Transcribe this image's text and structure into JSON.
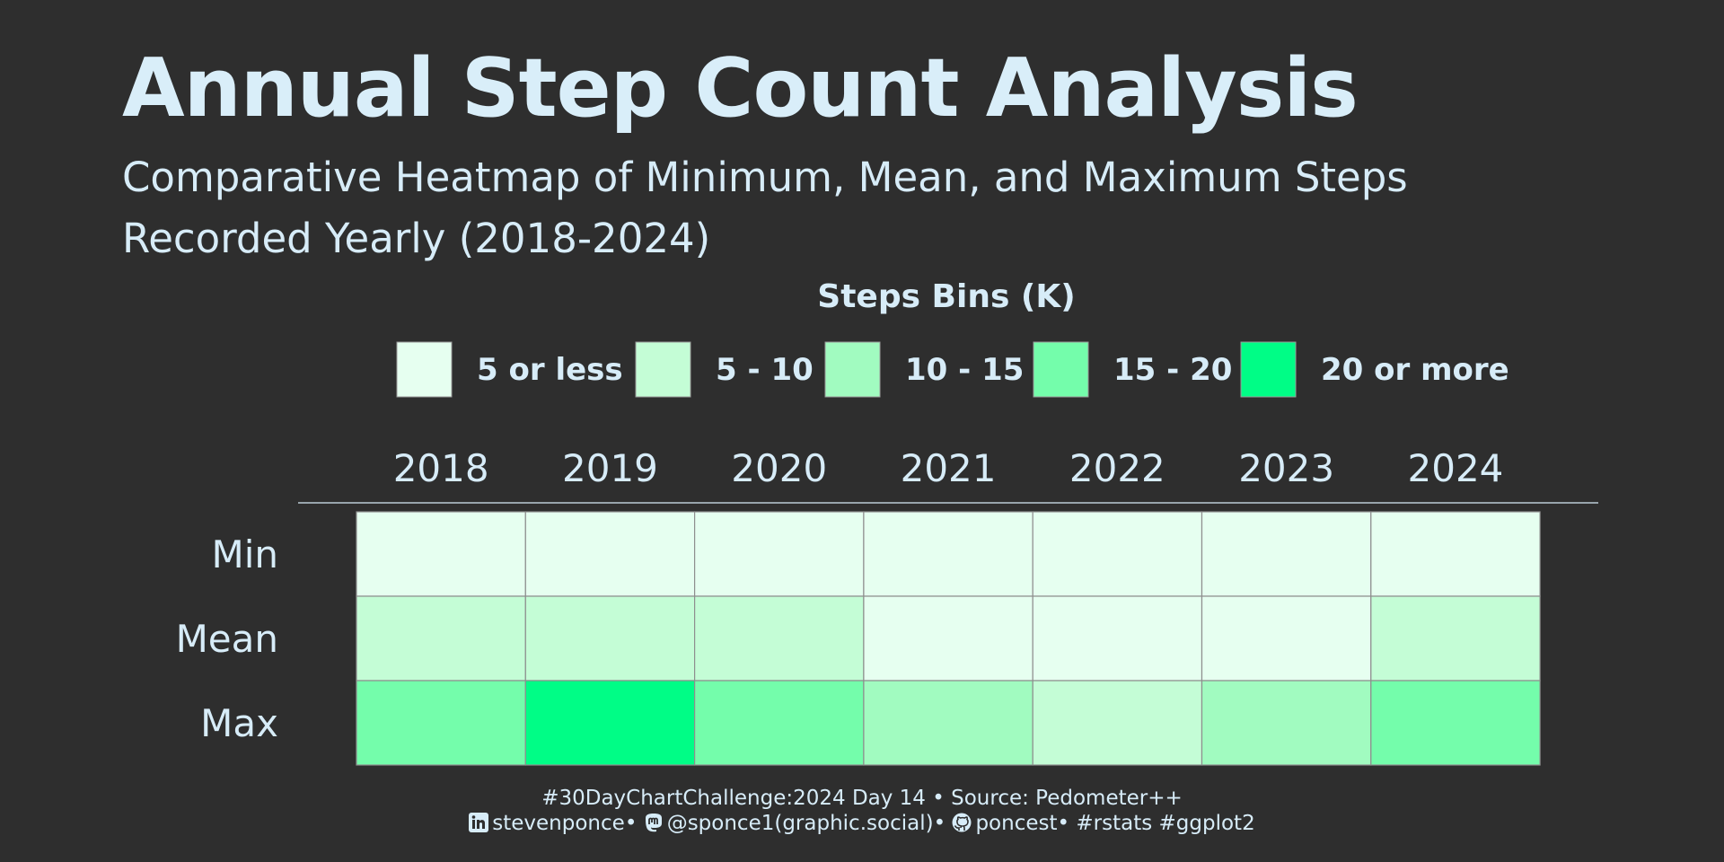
{
  "title": "Annual Step Count Analysis",
  "subtitle": "Comparative Heatmap of Minimum, Mean, and Maximum Steps Recorded Yearly (2018-2024)",
  "chart_data": {
    "type": "heatmap",
    "x": [
      "2018",
      "2019",
      "2020",
      "2021",
      "2022",
      "2023",
      "2024"
    ],
    "y": [
      "Min",
      "Mean",
      "Max"
    ],
    "legend_title": "Steps Bins (K)",
    "legend_position": "top",
    "bins": [
      {
        "label": "5 or less",
        "color": "#e6fff0"
      },
      {
        "label": "5 - 10",
        "color": "#c4fdd6"
      },
      {
        "label": "10 - 15",
        "color": "#a1fbc0"
      },
      {
        "label": "15 - 20",
        "color": "#74fdab"
      },
      {
        "label": "20 or more",
        "color": "#00fd86"
      }
    ],
    "cells": [
      [
        "5 or less",
        "5 or less",
        "5 or less",
        "5 or less",
        "5 or less",
        "5 or less",
        "5 or less"
      ],
      [
        "5 - 10",
        "5 - 10",
        "5 - 10",
        "5 or less",
        "5 or less",
        "5 or less",
        "5 - 10"
      ],
      [
        "15 - 20",
        "20 or more",
        "15 - 20",
        "10 - 15",
        "5 - 10",
        "10 - 15",
        "15 - 20"
      ]
    ]
  },
  "footer": {
    "line1": "#30DayChartChallenge:2024 Day 14 • Source: Pedometer++",
    "linkedin": "stevenponce",
    "mastodon": "@sponce1(graphic.social)",
    "github": "poncest",
    "tags": "#rstats #ggplot2",
    "sep": "•"
  },
  "icons": [
    "linkedin-icon",
    "mastodon-icon",
    "github-icon"
  ]
}
